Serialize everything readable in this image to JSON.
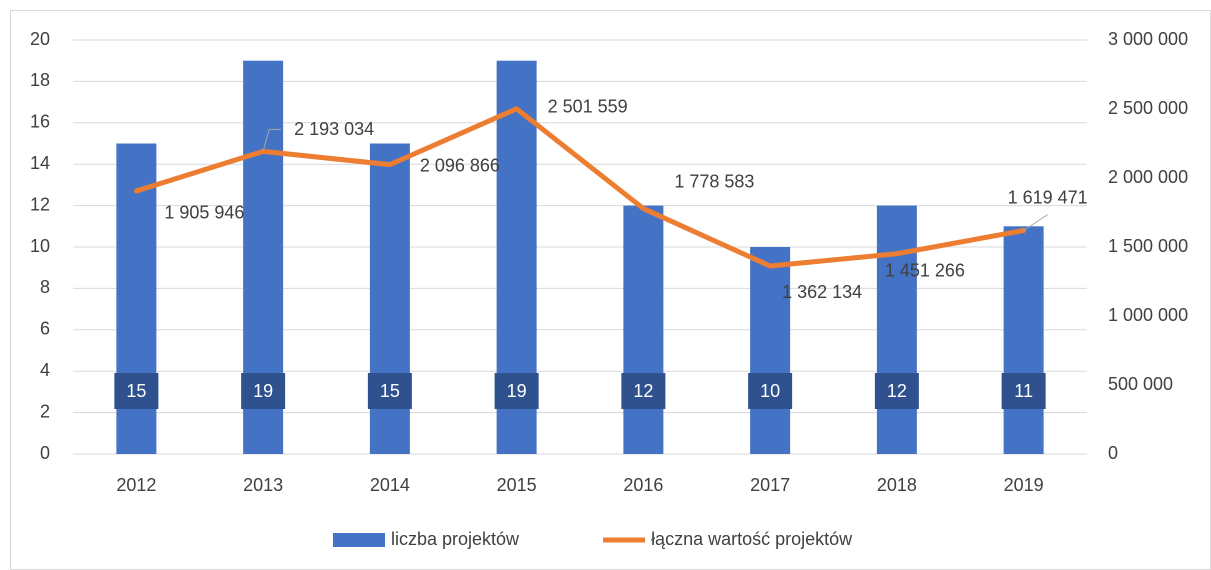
{
  "chart_data": {
    "type": "bar",
    "categories": [
      "2012",
      "2013",
      "2014",
      "2015",
      "2016",
      "2017",
      "2018",
      "2019"
    ],
    "series": [
      {
        "name": "liczba projektów",
        "type": "bar",
        "color": "#4472c4",
        "axis": "y",
        "values": [
          15,
          19,
          15,
          19,
          12,
          10,
          12,
          11
        ]
      },
      {
        "name": "łączna wartość projektów",
        "type": "line",
        "color": "#ed7d31",
        "axis": "y2",
        "values": [
          1905946,
          2193034,
          2096866,
          2501559,
          1778583,
          1362134,
          1451266,
          1619471
        ],
        "value_labels": [
          "1 905 946",
          "2 193 034",
          "2 096 866",
          "2 501 559",
          "1 778 583",
          "1 362 134",
          "1 451 266",
          "1 619 471"
        ]
      }
    ],
    "ylim": [
      0,
      20
    ],
    "yticks": [
      0,
      2,
      4,
      6,
      8,
      10,
      12,
      14,
      16,
      18,
      20
    ],
    "y2lim": [
      0,
      3000000
    ],
    "y2ticks": [
      0,
      {
        "value": 500000,
        "label": "500 000"
      },
      {
        "value": 1000000,
        "label": "1 000 000"
      },
      {
        "value": 1500000,
        "label": "1 500 000"
      },
      {
        "value": 2000000,
        "label": "2 000 000"
      },
      {
        "value": 2500000,
        "label": "2 500 000"
      },
      {
        "value": 3000000,
        "label": "3 000 000"
      }
    ],
    "grid": true,
    "legend": "bottom"
  }
}
